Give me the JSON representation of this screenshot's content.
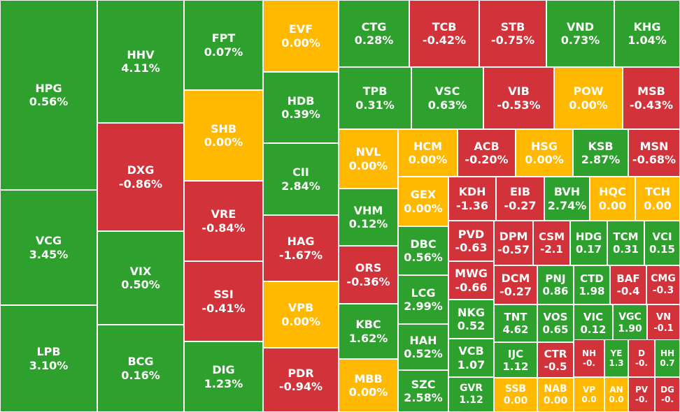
{
  "colors": {
    "up": "#2ea02e",
    "down": "#d2323a",
    "flat": "#ffb900",
    "border": "#ffffff"
  },
  "chart_data": {
    "type": "treemap",
    "tiles": [
      {
        "symbol": "HPG",
        "change": "0.56%",
        "value": 0.56,
        "status": "up"
      },
      {
        "symbol": "VCG",
        "change": "3.45%",
        "value": 3.45,
        "status": "up"
      },
      {
        "symbol": "LPB",
        "change": "3.10%",
        "value": 3.1,
        "status": "up"
      },
      {
        "symbol": "HHV",
        "change": "4.11%",
        "value": 4.11,
        "status": "up"
      },
      {
        "symbol": "DXG",
        "change": "-0.86%",
        "value": -0.86,
        "status": "down"
      },
      {
        "symbol": "VIX",
        "change": "0.50%",
        "value": 0.5,
        "status": "up"
      },
      {
        "symbol": "BCG",
        "change": "0.16%",
        "value": 0.16,
        "status": "up"
      },
      {
        "symbol": "FPT",
        "change": "0.07%",
        "value": 0.07,
        "status": "up"
      },
      {
        "symbol": "SHB",
        "change": "0.00%",
        "value": 0.0,
        "status": "flat"
      },
      {
        "symbol": "VRE",
        "change": "-0.84%",
        "value": -0.84,
        "status": "down"
      },
      {
        "symbol": "SSI",
        "change": "-0.41%",
        "value": -0.41,
        "status": "down"
      },
      {
        "symbol": "DIG",
        "change": "1.23%",
        "value": 1.23,
        "status": "up"
      },
      {
        "symbol": "EVF",
        "change": "0.00%",
        "value": 0.0,
        "status": "flat"
      },
      {
        "symbol": "HDB",
        "change": "0.39%",
        "value": 0.39,
        "status": "up"
      },
      {
        "symbol": "CII",
        "change": "2.84%",
        "value": 2.84,
        "status": "up"
      },
      {
        "symbol": "HAG",
        "change": "-1.67%",
        "value": -1.67,
        "status": "down"
      },
      {
        "symbol": "VPB",
        "change": "0.00%",
        "value": 0.0,
        "status": "flat"
      },
      {
        "symbol": "PDR",
        "change": "-0.94%",
        "value": -0.94,
        "status": "down"
      },
      {
        "symbol": "CTG",
        "change": "0.28%",
        "value": 0.28,
        "status": "up"
      },
      {
        "symbol": "TCB",
        "change": "-0.42%",
        "value": -0.42,
        "status": "down"
      },
      {
        "symbol": "STB",
        "change": "-0.75%",
        "value": -0.75,
        "status": "down"
      },
      {
        "symbol": "VND",
        "change": "0.73%",
        "value": 0.73,
        "status": "up"
      },
      {
        "symbol": "KHG",
        "change": "1.04%",
        "value": 1.04,
        "status": "up"
      },
      {
        "symbol": "TPB",
        "change": "0.31%",
        "value": 0.31,
        "status": "up"
      },
      {
        "symbol": "VSC",
        "change": "0.63%",
        "value": 0.63,
        "status": "up"
      },
      {
        "symbol": "VIB",
        "change": "-0.53%",
        "value": -0.53,
        "status": "down"
      },
      {
        "symbol": "POW",
        "change": "0.00%",
        "value": 0.0,
        "status": "flat"
      },
      {
        "symbol": "MSB",
        "change": "-0.43%",
        "value": -0.43,
        "status": "down"
      },
      {
        "symbol": "NVL",
        "change": "0.00%",
        "value": 0.0,
        "status": "flat"
      },
      {
        "symbol": "HCM",
        "change": "0.00%",
        "value": 0.0,
        "status": "flat"
      },
      {
        "symbol": "ACB",
        "change": "-0.20%",
        "value": -0.2,
        "status": "down"
      },
      {
        "symbol": "HSG",
        "change": "0.00%",
        "value": 0.0,
        "status": "flat"
      },
      {
        "symbol": "KSB",
        "change": "2.87%",
        "value": 2.87,
        "status": "up"
      },
      {
        "symbol": "MSN",
        "change": "-0.68%",
        "value": -0.68,
        "status": "down"
      },
      {
        "symbol": "VHM",
        "change": "0.12%",
        "value": 0.12,
        "status": "up"
      },
      {
        "symbol": "GEX",
        "change": "0.00%",
        "value": 0.0,
        "status": "flat"
      },
      {
        "symbol": "KDH",
        "change": "-1.36",
        "value": -1.36,
        "status": "down"
      },
      {
        "symbol": "EIB",
        "change": "-0.27",
        "value": -0.27,
        "status": "down"
      },
      {
        "symbol": "BVH",
        "change": "2.74%",
        "value": 2.74,
        "status": "up"
      },
      {
        "symbol": "HQC",
        "change": "0.00",
        "value": 0.0,
        "status": "flat"
      },
      {
        "symbol": "TCH",
        "change": "0.00",
        "value": 0.0,
        "status": "flat"
      },
      {
        "symbol": "ORS",
        "change": "-0.36%",
        "value": -0.36,
        "status": "down"
      },
      {
        "symbol": "DBC",
        "change": "0.56%",
        "value": 0.56,
        "status": "up"
      },
      {
        "symbol": "PVD",
        "change": "-0.63",
        "value": -0.63,
        "status": "down"
      },
      {
        "symbol": "DPM",
        "change": "-0.57",
        "value": -0.57,
        "status": "down"
      },
      {
        "symbol": "CSM",
        "change": "-2.1",
        "value": -2.1,
        "status": "down"
      },
      {
        "symbol": "HDG",
        "change": "0.17",
        "value": 0.17,
        "status": "up"
      },
      {
        "symbol": "TCM",
        "change": "0.31",
        "value": 0.31,
        "status": "up"
      },
      {
        "symbol": "VCI",
        "change": "0.15",
        "value": 0.15,
        "status": "up"
      },
      {
        "symbol": "LCG",
        "change": "2.99%",
        "value": 2.99,
        "status": "up"
      },
      {
        "symbol": "MWG",
        "change": "-0.66",
        "value": -0.66,
        "status": "down"
      },
      {
        "symbol": "DCM",
        "change": "-0.27",
        "value": -0.27,
        "status": "down"
      },
      {
        "symbol": "PNJ",
        "change": "0.86",
        "value": 0.86,
        "status": "up"
      },
      {
        "symbol": "CTD",
        "change": "1.98",
        "value": 1.98,
        "status": "up"
      },
      {
        "symbol": "BAF",
        "change": "-0.4",
        "value": -0.4,
        "status": "down"
      },
      {
        "symbol": "CMG",
        "change": "-0.3",
        "value": -0.3,
        "status": "down"
      },
      {
        "symbol": "KBC",
        "change": "1.62%",
        "value": 1.62,
        "status": "up"
      },
      {
        "symbol": "NKG",
        "change": "0.52",
        "value": 0.52,
        "status": "up"
      },
      {
        "symbol": "TNT",
        "change": "4.62",
        "value": 4.62,
        "status": "up"
      },
      {
        "symbol": "VOS",
        "change": "0.65",
        "value": 0.65,
        "status": "up"
      },
      {
        "symbol": "VIC",
        "change": "0.12",
        "value": 0.12,
        "status": "up"
      },
      {
        "symbol": "VGC",
        "change": "1.90",
        "value": 1.9,
        "status": "up"
      },
      {
        "symbol": "VN",
        "change": "-0.1",
        "value": -0.1,
        "status": "down"
      },
      {
        "symbol": "HAH",
        "change": "0.52%",
        "value": 0.52,
        "status": "up"
      },
      {
        "symbol": "VCB",
        "change": "1.07",
        "value": 1.07,
        "status": "up"
      },
      {
        "symbol": "IJC",
        "change": "1.12",
        "value": 1.12,
        "status": "up"
      },
      {
        "symbol": "CTR",
        "change": "-0.5",
        "value": -0.5,
        "status": "down"
      },
      {
        "symbol": "NH",
        "change": "-0.",
        "value": null,
        "status": "down"
      },
      {
        "symbol": "YE",
        "change": "1.3",
        "value": 1.3,
        "status": "up"
      },
      {
        "symbol": "D",
        "change": "-0.",
        "value": null,
        "status": "down"
      },
      {
        "symbol": "HH",
        "change": "0.7",
        "value": 0.7,
        "status": "up"
      },
      {
        "symbol": "MBB",
        "change": "0.00%",
        "value": 0.0,
        "status": "flat"
      },
      {
        "symbol": "SZC",
        "change": "2.58%",
        "value": 2.58,
        "status": "up"
      },
      {
        "symbol": "GVR",
        "change": "1.12",
        "value": 1.12,
        "status": "up"
      },
      {
        "symbol": "SSB",
        "change": "0.00",
        "value": 0.0,
        "status": "flat"
      },
      {
        "symbol": "NAB",
        "change": "0.00",
        "value": 0.0,
        "status": "flat"
      },
      {
        "symbol": "VP",
        "change": "0.0",
        "value": 0.0,
        "status": "flat"
      },
      {
        "symbol": "AN",
        "change": "0.0",
        "value": 0.0,
        "status": "flat"
      },
      {
        "symbol": "PV",
        "change": "-0.",
        "value": null,
        "status": "down"
      },
      {
        "symbol": "DG",
        "change": "-0.",
        "value": null,
        "status": "down"
      }
    ]
  }
}
